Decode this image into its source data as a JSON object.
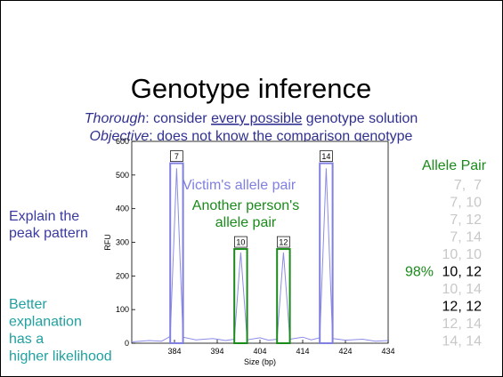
{
  "slide": {
    "title": "Genotype inference",
    "subtitle_1": {
      "term": "Thorough",
      "rest_a": ": consider ",
      "underlined": "every possible",
      "rest_b": " genotype solution"
    },
    "subtitle_2": {
      "term": "Objective",
      "rest_a": ": does ",
      "underlined": "not know",
      "rest_b": " the comparison genotype"
    },
    "left_note_1": [
      "Explain the",
      "peak pattern"
    ],
    "left_note_2": [
      "Better",
      "explanation",
      "has a",
      "higher likelihood"
    ]
  },
  "chart_data": {
    "type": "line",
    "x_label": "Size (bp)",
    "y_label": "RFU",
    "xlim": [
      374,
      434
    ],
    "ylim": [
      0,
      600
    ],
    "xticks": [
      384,
      394,
      404,
      414,
      424,
      434
    ],
    "yticks": [
      0,
      100,
      200,
      300,
      400,
      500,
      600
    ],
    "x": [
      374,
      378,
      381,
      383,
      384.5,
      386,
      389,
      393,
      396,
      398,
      399.5,
      401,
      404,
      406,
      408,
      409.5,
      411,
      414,
      416,
      418,
      419.5,
      421,
      424,
      428,
      431,
      434
    ],
    "series": [
      {
        "color": "#8c8ce6",
        "values": [
          4,
          8,
          6,
          20,
          520,
          18,
          10,
          14,
          8,
          12,
          270,
          10,
          16,
          9,
          12,
          270,
          12,
          18,
          10,
          16,
          520,
          14,
          9,
          12,
          6,
          8
        ]
      }
    ],
    "allele_boxes": [
      {
        "label": "7",
        "x0": 383,
        "x1": 386,
        "height": 535,
        "color": "#8080e0"
      },
      {
        "label": "10",
        "x0": 398,
        "x1": 401,
        "height": 280,
        "color": "#1a8a1a"
      },
      {
        "label": "12",
        "x0": 408,
        "x1": 411,
        "height": 280,
        "color": "#1a8a1a"
      },
      {
        "label": "14",
        "x0": 418,
        "x1": 421,
        "height": 535,
        "color": "#8080e0"
      }
    ],
    "annotations": [
      {
        "lines": [
          "Victim's allele pair"
        ],
        "color": "#8080e0"
      },
      {
        "lines": [
          "Another person's",
          "allele pair"
        ],
        "color": "#1a8a1a"
      }
    ]
  },
  "allele_table": {
    "header": "Allele Pair",
    "rows": [
      {
        "pair": "7,  7",
        "color": "#c8c8c8"
      },
      {
        "pair": "7, 10",
        "color": "#c8c8c8"
      },
      {
        "pair": "7, 12",
        "color": "#c8c8c8"
      },
      {
        "pair": "7, 14",
        "color": "#c8c8c8"
      },
      {
        "pair": "10, 10",
        "color": "#c8c8c8"
      },
      {
        "pair": "10, 12",
        "color": "#000000",
        "probability": "98%"
      },
      {
        "pair": "10, 14",
        "color": "#c8c8c8"
      },
      {
        "pair": "12, 12",
        "color": "#000000"
      },
      {
        "pair": "12, 14",
        "color": "#c8c8c8"
      },
      {
        "pair": "14, 14",
        "color": "#c8c8c8"
      }
    ]
  }
}
